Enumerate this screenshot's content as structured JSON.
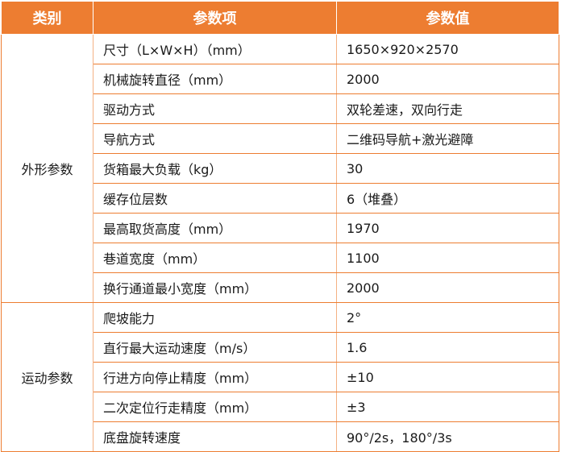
{
  "table": {
    "headers": {
      "category": "类别",
      "param": "参数项",
      "value": "参数值"
    },
    "groups": [
      {
        "category": "外形参数",
        "rows": [
          {
            "param": "尺寸（L×W×H）（mm）",
            "value": "1650×920×2570"
          },
          {
            "param": "机械旋转直径（mm）",
            "value": "2000"
          },
          {
            "param": "驱动方式",
            "value": "双轮差速，双向行走"
          },
          {
            "param": "导航方式",
            "value": "二维码导航+激光避障"
          },
          {
            "param": "货箱最大负载（kg）",
            "value": "30"
          },
          {
            "param": "缓存位层数",
            "value": "6（堆叠）"
          },
          {
            "param": "最高取货高度（mm）",
            "value": "1970"
          },
          {
            "param": "巷道宽度（mm）",
            "value": "1100"
          },
          {
            "param": "换行通道最小宽度（mm）",
            "value": "2000"
          }
        ]
      },
      {
        "category": "运动参数",
        "rows": [
          {
            "param": "爬坡能力",
            "value": "2°"
          },
          {
            "param": "直行最大运动速度（m/s）",
            "value": "1.6"
          },
          {
            "param": "行进方向停止精度（mm）",
            "value": "±10"
          },
          {
            "param": "二次定位行走精度（mm）",
            "value": "±3"
          },
          {
            "param": "底盘旋转速度",
            "value": "90°/2s，180°/3s"
          }
        ]
      }
    ]
  }
}
